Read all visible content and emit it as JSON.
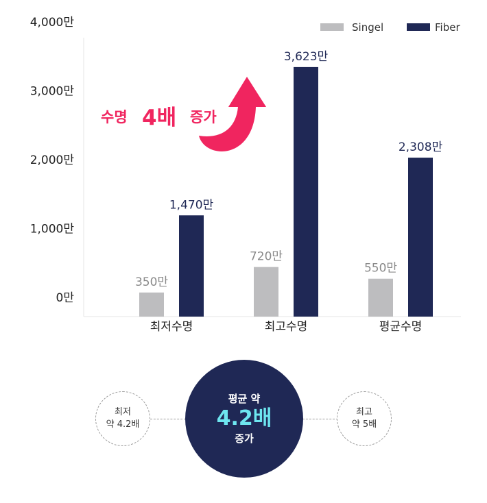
{
  "chart_data": {
    "type": "bar",
    "categories": [
      "최저수명",
      "최고수명",
      "평균수명"
    ],
    "series": [
      {
        "name": "Singel",
        "values": [
          350,
          720,
          550
        ],
        "color": "#bdbdbf"
      },
      {
        "name": "Fiber",
        "values": [
          1470,
          3623,
          2308
        ],
        "color": "#1f2855"
      }
    ],
    "value_labels": {
      "Singel": [
        "350만",
        "720만",
        "550만"
      ],
      "Fiber": [
        "1,470만",
        "3,623만",
        "2,308만"
      ]
    },
    "y_ticks": [
      0,
      1000,
      2000,
      3000,
      4000
    ],
    "y_tick_labels": [
      "0만",
      "1,000만",
      "2,000만",
      "3,000만",
      "4,000만"
    ],
    "ylim": [
      0,
      4000
    ],
    "grid": false,
    "legend_position": "top-right",
    "annotation": {
      "prefix": "수명",
      "highlight": "4배",
      "suffix": "증가",
      "color": "#f0255f"
    }
  },
  "summary": {
    "left": {
      "line1": "최저",
      "line2": "약 4.2배"
    },
    "center": {
      "line1": "평균 약",
      "line2": "4.2배",
      "line3": "증가"
    },
    "right": {
      "line1": "최고",
      "line2": "약 5배"
    }
  }
}
